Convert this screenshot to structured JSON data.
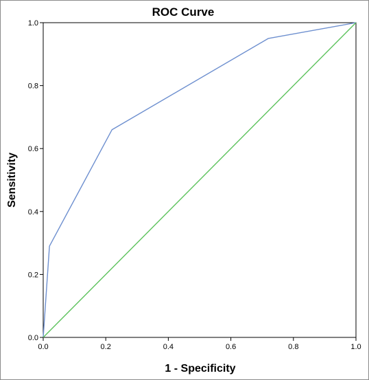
{
  "chart_data": {
    "type": "line",
    "title": "ROC Curve",
    "xlabel": "1 - Specificity",
    "ylabel": "Sensitivity",
    "xlim": [
      0,
      1
    ],
    "ylim": [
      0,
      1
    ],
    "x_ticks": [
      "0.0",
      "0.2",
      "0.4",
      "0.6",
      "0.8",
      "1.0"
    ],
    "y_ticks": [
      "0.0",
      "0.2",
      "0.4",
      "0.6",
      "0.8",
      "1.0"
    ],
    "grid": false,
    "series": [
      {
        "color": "#6d8fcf",
        "x": [
          0.0,
          0.02,
          0.22,
          0.72,
          1.0
        ],
        "y": [
          0.0,
          0.29,
          0.66,
          0.95,
          1.0
        ]
      },
      {
        "color": "#5cc25c",
        "x": [
          0.0,
          1.0
        ],
        "y": [
          0.0,
          1.0
        ]
      }
    ]
  }
}
